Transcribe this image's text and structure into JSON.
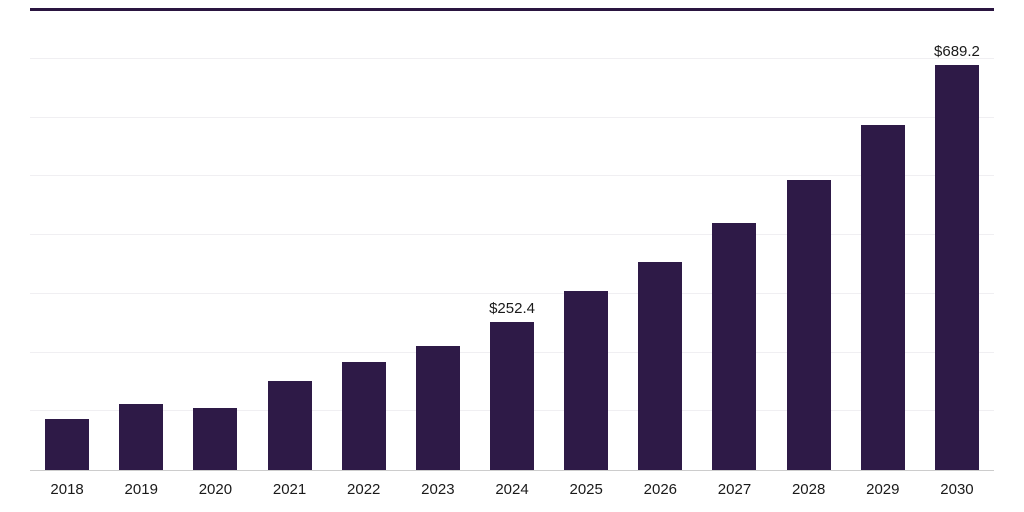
{
  "chart_data": {
    "type": "bar",
    "title": "",
    "xlabel": "",
    "ylabel": "",
    "categories": [
      "2018",
      "2019",
      "2020",
      "2021",
      "2022",
      "2023",
      "2024",
      "2025",
      "2026",
      "2027",
      "2028",
      "2029",
      "2030"
    ],
    "values": [
      87,
      112,
      105,
      151,
      184,
      211,
      252.4,
      305,
      354,
      420,
      494,
      587,
      689.2
    ],
    "data_labels": {
      "2024": "$252.4",
      "2030": "$689.2"
    },
    "ylim": [
      0,
      700
    ],
    "grid": "horizontal",
    "gridline_values": [
      100,
      200,
      300,
      400,
      500,
      600,
      700
    ],
    "legend": "none",
    "colors": {
      "bar": "#2e1a47",
      "top_rule": "#2a1540",
      "gridline": "#f0eff2",
      "axis_line": "#cccccc",
      "label": "#1a1a1a"
    }
  }
}
